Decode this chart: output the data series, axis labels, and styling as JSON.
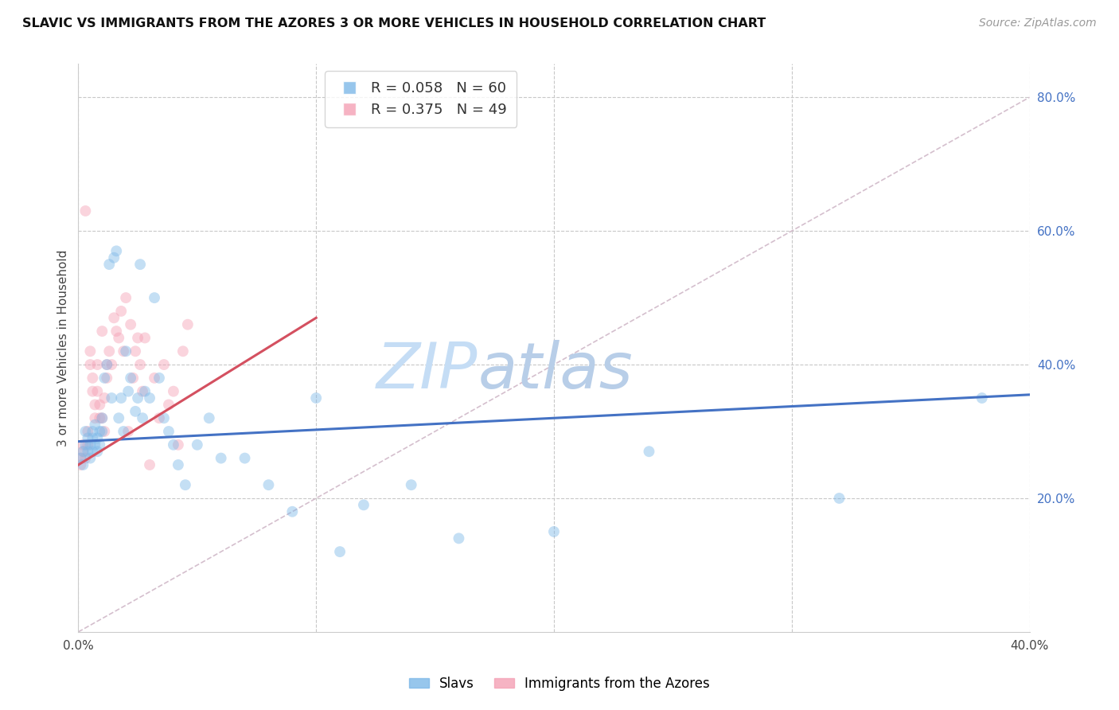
{
  "title": "SLAVIC VS IMMIGRANTS FROM THE AZORES 3 OR MORE VEHICLES IN HOUSEHOLD CORRELATION CHART",
  "source": "Source: ZipAtlas.com",
  "ylabel": "3 or more Vehicles in Household",
  "legend_bottom": [
    "Slavs",
    "Immigrants from the Azores"
  ],
  "series": [
    {
      "label": "Slavs",
      "R": 0.058,
      "N": 60,
      "x": [
        0.001,
        0.002,
        0.002,
        0.003,
        0.003,
        0.004,
        0.004,
        0.005,
        0.005,
        0.006,
        0.006,
        0.006,
        0.007,
        0.007,
        0.008,
        0.008,
        0.009,
        0.009,
        0.01,
        0.01,
        0.011,
        0.012,
        0.013,
        0.014,
        0.015,
        0.016,
        0.017,
        0.018,
        0.019,
        0.02,
        0.021,
        0.022,
        0.024,
        0.025,
        0.026,
        0.027,
        0.028,
        0.03,
        0.032,
        0.034,
        0.036,
        0.038,
        0.04,
        0.042,
        0.045,
        0.05,
        0.055,
        0.06,
        0.07,
        0.08,
        0.09,
        0.1,
        0.11,
        0.12,
        0.14,
        0.16,
        0.2,
        0.24,
        0.32,
        0.38
      ],
      "y": [
        0.26,
        0.27,
        0.25,
        0.28,
        0.3,
        0.27,
        0.29,
        0.26,
        0.28,
        0.27,
        0.29,
        0.3,
        0.28,
        0.31,
        0.27,
        0.29,
        0.28,
        0.3,
        0.3,
        0.32,
        0.38,
        0.4,
        0.55,
        0.35,
        0.56,
        0.57,
        0.32,
        0.35,
        0.3,
        0.42,
        0.36,
        0.38,
        0.33,
        0.35,
        0.55,
        0.32,
        0.36,
        0.35,
        0.5,
        0.38,
        0.32,
        0.3,
        0.28,
        0.25,
        0.22,
        0.28,
        0.32,
        0.26,
        0.26,
        0.22,
        0.18,
        0.35,
        0.12,
        0.19,
        0.22,
        0.14,
        0.15,
        0.27,
        0.2,
        0.35
      ]
    },
    {
      "label": "Immigrants from the Azores",
      "R": 0.375,
      "N": 49,
      "x": [
        0.001,
        0.001,
        0.002,
        0.002,
        0.003,
        0.003,
        0.004,
        0.004,
        0.005,
        0.005,
        0.006,
        0.006,
        0.007,
        0.007,
        0.008,
        0.008,
        0.009,
        0.009,
        0.01,
        0.01,
        0.011,
        0.011,
        0.012,
        0.012,
        0.013,
        0.014,
        0.015,
        0.016,
        0.017,
        0.018,
        0.019,
        0.02,
        0.021,
        0.022,
        0.023,
        0.024,
        0.025,
        0.026,
        0.027,
        0.028,
        0.03,
        0.032,
        0.034,
        0.036,
        0.038,
        0.04,
        0.042,
        0.044,
        0.046
      ],
      "y": [
        0.25,
        0.26,
        0.27,
        0.28,
        0.26,
        0.63,
        0.28,
        0.3,
        0.4,
        0.42,
        0.38,
        0.36,
        0.34,
        0.32,
        0.4,
        0.36,
        0.34,
        0.32,
        0.45,
        0.32,
        0.3,
        0.35,
        0.38,
        0.4,
        0.42,
        0.4,
        0.47,
        0.45,
        0.44,
        0.48,
        0.42,
        0.5,
        0.3,
        0.46,
        0.38,
        0.42,
        0.44,
        0.4,
        0.36,
        0.44,
        0.25,
        0.38,
        0.32,
        0.4,
        0.34,
        0.36,
        0.28,
        0.42,
        0.46
      ]
    }
  ],
  "xlim": [
    0.0,
    0.4
  ],
  "ylim": [
    0.0,
    0.85
  ],
  "xticks": [
    0.0,
    0.1,
    0.2,
    0.3,
    0.4
  ],
  "xtick_labels": [
    "0.0%",
    "",
    "",
    "",
    "40.0%"
  ],
  "yticks_right": [
    0.2,
    0.4,
    0.6,
    0.8
  ],
  "ytick_labels_right": [
    "20.0%",
    "40.0%",
    "60.0%",
    "80.0%"
  ],
  "grid_color": "#c8c8c8",
  "background_color": "#ffffff",
  "scatter_size": 100,
  "scatter_alpha": 0.45,
  "blue_color": "#7db8e8",
  "pink_color": "#f4a0b5",
  "trend_blue": "#4472c4",
  "trend_pink": "#d45060",
  "watermark_zip": "ZIP",
  "watermark_atlas": "atlas",
  "watermark_color_zip": "#c5ddf5",
  "watermark_color_atlas": "#b8cee8",
  "diag_line_color": "#d0b8c8"
}
